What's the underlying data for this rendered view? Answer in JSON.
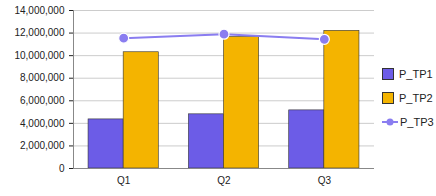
{
  "chart_data": {
    "type": "bar",
    "categories": [
      "Q1",
      "Q2",
      "Q3"
    ],
    "series": [
      {
        "name": "P_TP1",
        "color": "#6c5ce7",
        "values": [
          4350000,
          4800000,
          5150000
        ]
      },
      {
        "name": "P_TP2",
        "color": "#f4b400",
        "values": [
          10300000,
          11650000,
          12200000
        ]
      },
      {
        "name": "P_TP3",
        "type": "line",
        "color": "#8a7df0",
        "marker": "circle",
        "line_style": "solid",
        "values": [
          11550000,
          11900000,
          11450000
        ]
      }
    ],
    "ylim": [
      0,
      14000000
    ],
    "yticks": [
      0,
      {
        "value": 2000000,
        "label": "2,000,000"
      },
      {
        "value": 4000000,
        "label": "4,000,000"
      },
      {
        "value": 6000000,
        "label": "6,000,000"
      },
      {
        "value": 8000000,
        "label": "8,000,000"
      },
      {
        "value": 10000000,
        "label": "10,000,000"
      },
      {
        "value": 12000000,
        "label": "12,000,000"
      },
      {
        "value": 14000000,
        "label": "14,000,000"
      }
    ],
    "grid": true,
    "legend": "right"
  }
}
